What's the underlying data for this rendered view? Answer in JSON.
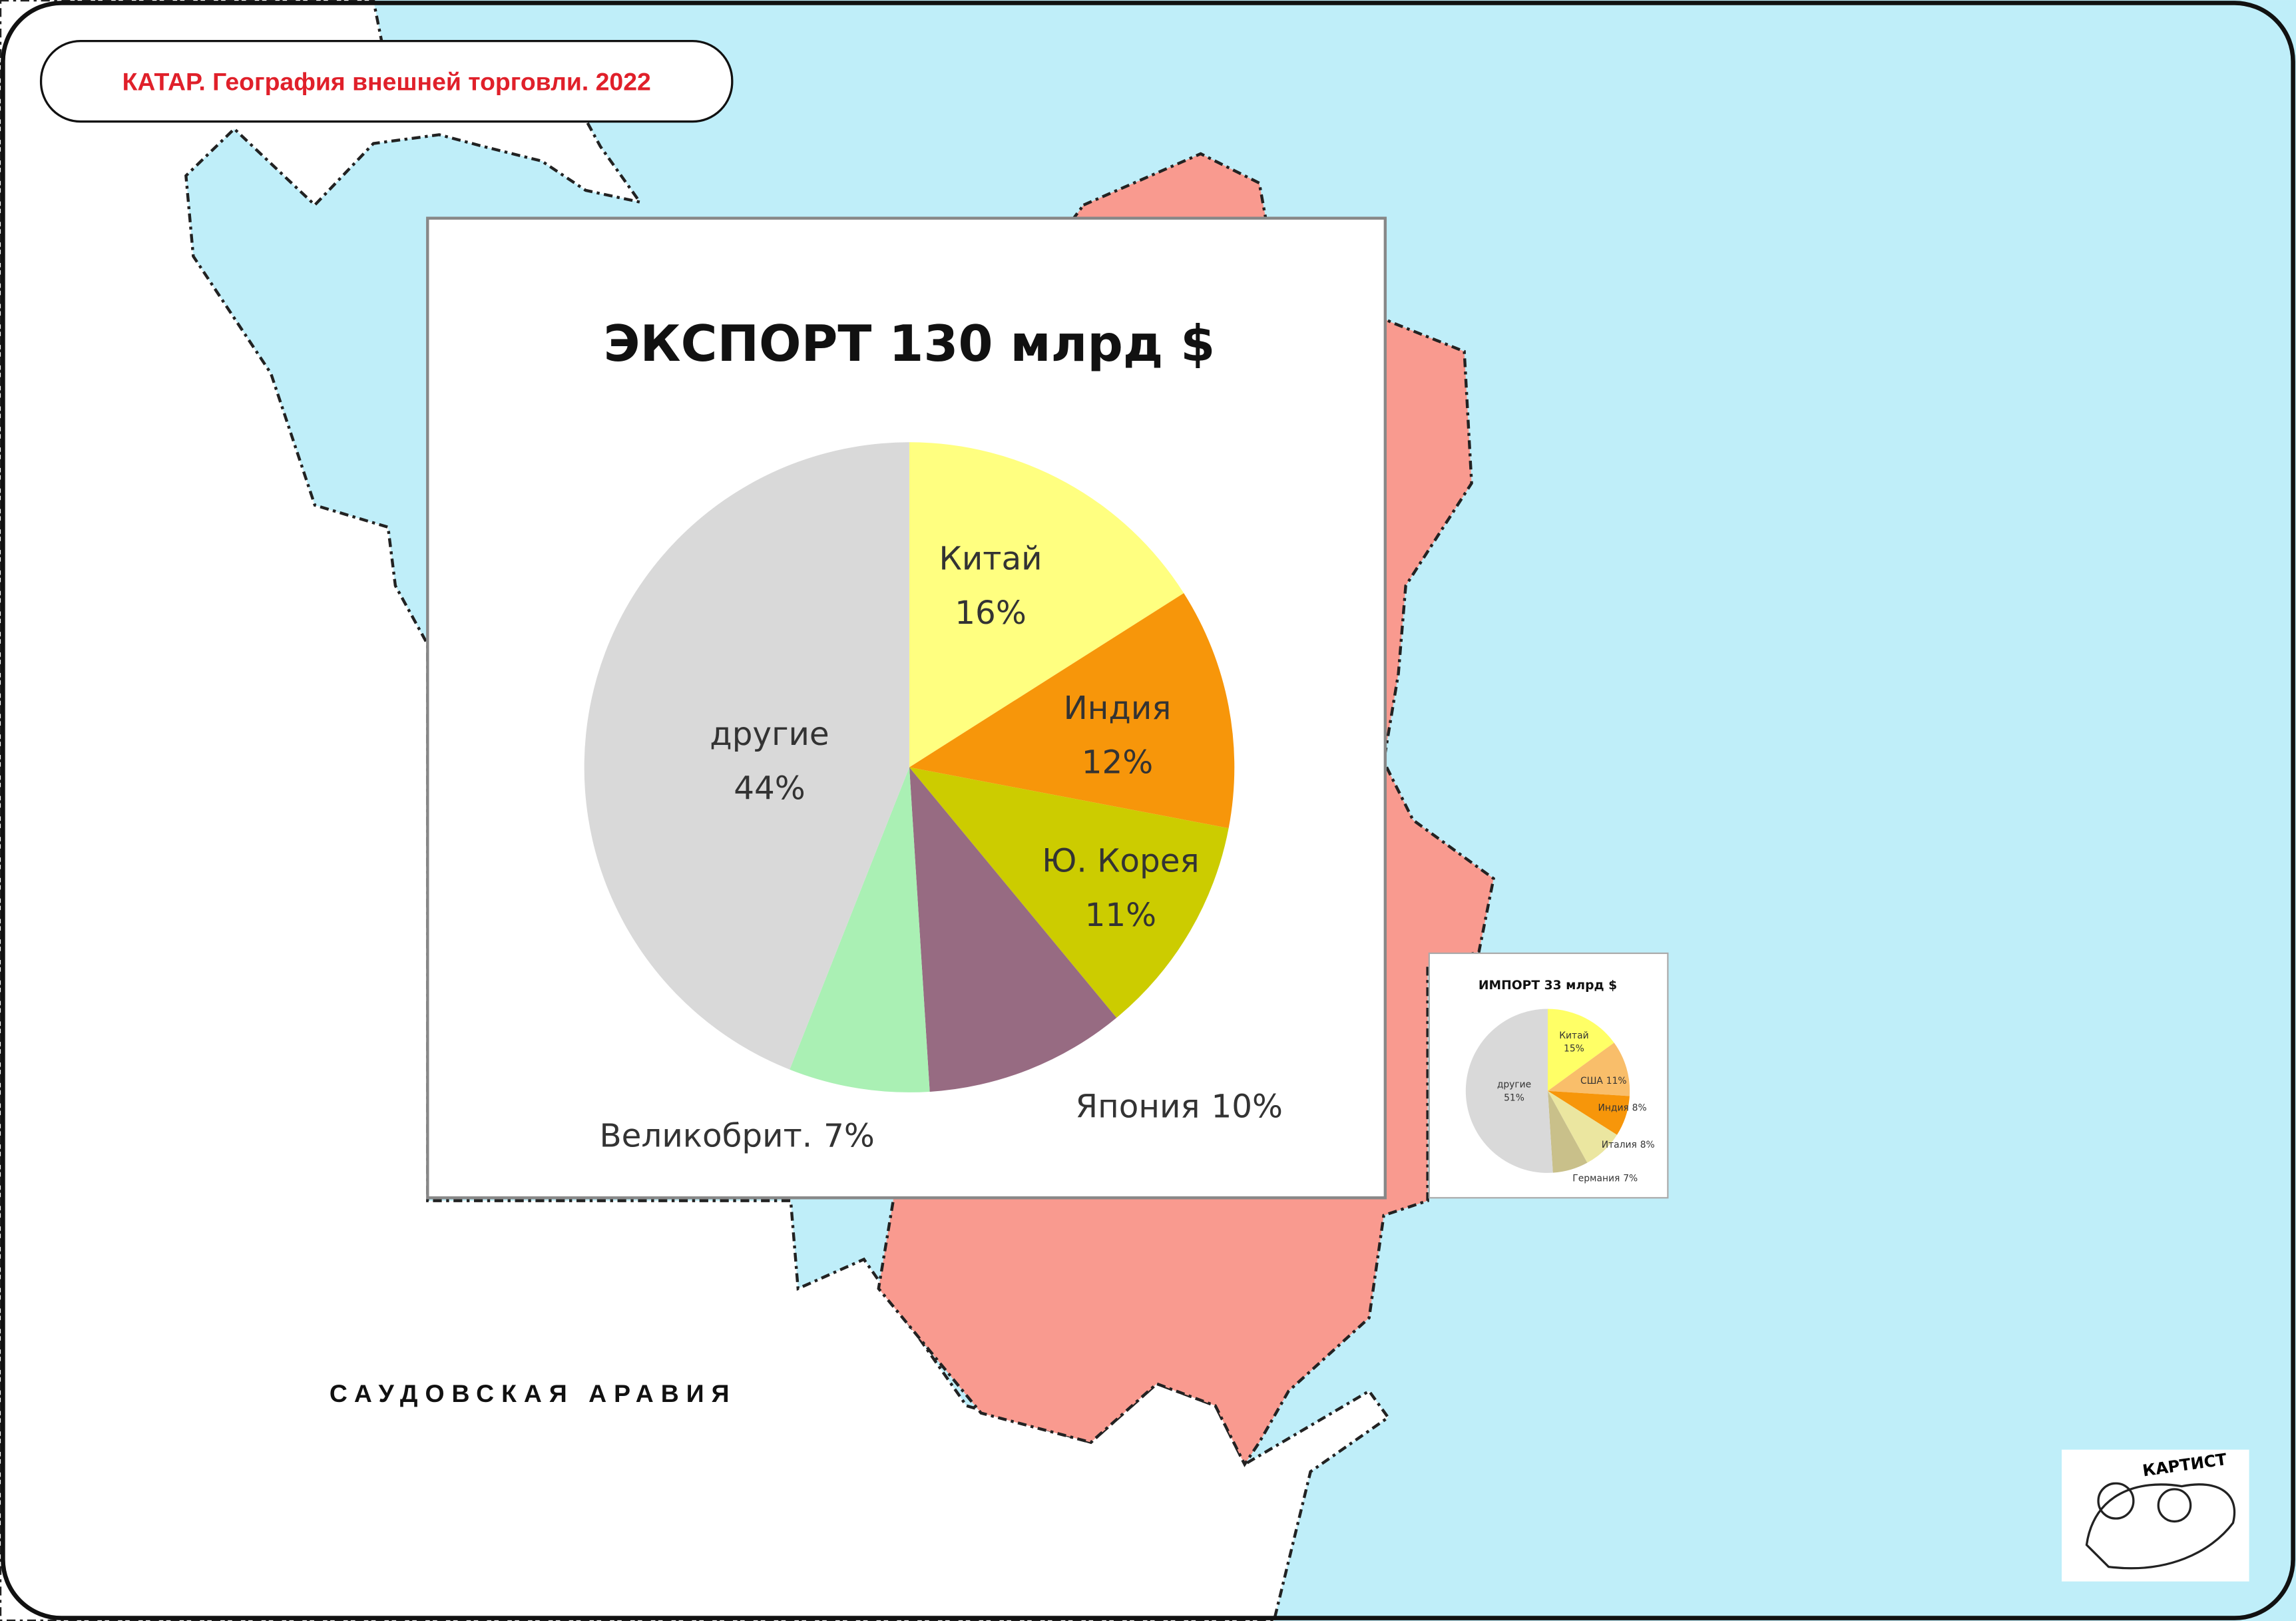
{
  "title": "КАТАР. География внешней торговли. 2022",
  "region_label": "САУДОВСКАЯ АРАВИЯ",
  "logo_text": "КАРТИСТ",
  "chart_data": [
    {
      "type": "pie",
      "title": "ЭКСПОРТ 130 млрд $",
      "categories": [
        "Китай",
        "Индия",
        "Ю. Корея",
        "Япония",
        "Великобрит.",
        "другие"
      ],
      "values": [
        16,
        12,
        11,
        10,
        7,
        44
      ],
      "value_labels": [
        "16%",
        "12%",
        "11%",
        "10%",
        "7%",
        "44%"
      ],
      "colors": [
        "#ffff80",
        "#f7960a",
        "#cccc00",
        "#976b82",
        "#aaf0b4",
        "#d9d9d9"
      ]
    },
    {
      "type": "pie",
      "title": "ИМПОРТ 33 млрд $",
      "categories": [
        "Китай",
        "США",
        "Индия",
        "Италия",
        "Германия",
        "другие"
      ],
      "values": [
        15,
        11,
        8,
        8,
        7,
        51
      ],
      "value_labels": [
        "15%",
        "11%",
        "8%",
        "8%",
        "7%",
        "51%"
      ],
      "colors": [
        "#ffff66",
        "#f9be6a",
        "#f7960a",
        "#ebe6a0",
        "#c9c08a",
        "#d9d9d9"
      ]
    }
  ]
}
